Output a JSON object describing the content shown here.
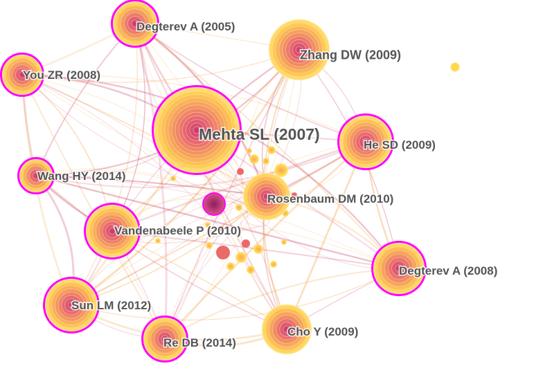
{
  "colors": {
    "ring_outer": "#ffd84a",
    "ring_inner": "#e8406a",
    "citation_burst": "#ff00ff",
    "edge_red": "#d0506e",
    "edge_orange": "#f2a64a",
    "label": "#555555"
  },
  "nodes": [
    {
      "id": "degterev-2005",
      "label": "Degterev A (2005)",
      "burst": true,
      "size": 32
    },
    {
      "id": "zhang-2009",
      "label": "Zhang DW (2009)",
      "burst": false,
      "size": 44
    },
    {
      "id": "you-2008",
      "label": "You ZR (2008)",
      "burst": true,
      "size": 29
    },
    {
      "id": "mehta-2007",
      "label": "Mehta SL (2007)",
      "burst": true,
      "size": 62
    },
    {
      "id": "he-2009",
      "label": "He SD (2009)",
      "burst": true,
      "size": 38
    },
    {
      "id": "wang-2014",
      "label": "Wang HY (2014)",
      "burst": true,
      "size": 24
    },
    {
      "id": "rosenbaum-2010",
      "label": "Rosenbaum DM (2010)",
      "burst": false,
      "size": 34
    },
    {
      "id": "vandenabeele-2010",
      "label": "Vandenabeele P (2010)",
      "burst": true,
      "size": 38
    },
    {
      "id": "degterev-2008",
      "label": "Degterev A (2008)",
      "burst": true,
      "size": 37
    },
    {
      "id": "sun-2012",
      "label": "Sun LM (2012)",
      "burst": true,
      "size": 38
    },
    {
      "id": "cho-2009",
      "label": "Cho Y (2009)",
      "burst": false,
      "size": 36
    },
    {
      "id": "re-2014",
      "label": "Re DB (2014)",
      "burst": true,
      "size": 31
    }
  ],
  "minor_nodes": [
    {
      "id": "n1",
      "burst": true
    },
    {
      "id": "n2",
      "burst": false
    }
  ]
}
